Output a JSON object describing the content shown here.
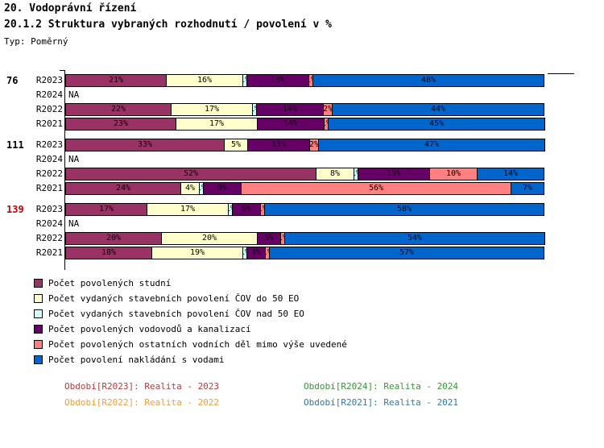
{
  "header": {
    "title": "20. Vodoprávní řízení",
    "subtitle": "20.1.2 Struktura vybraných rozhodnutí / povolení v %",
    "type_label": "Typ: Poměrný"
  },
  "chart_data": {
    "type": "bar",
    "orientation": "horizontal",
    "stacked": true,
    "unit": "%",
    "xlim": [
      0,
      100
    ],
    "na_label": "NA",
    "series_keys": [
      "studny",
      "cov-do-50-eo",
      "cov-nad-50-eo",
      "vodovody-kanalizace",
      "ostatni-vodni-dila",
      "nakladani-s-vodami"
    ],
    "series_names": [
      "Počet povolených studní",
      "Počet vydaných stavebních povolení ČOV do 50 EO",
      "Počet vydaných stavebních povolení ČOV nad 50 EO",
      "Počet povolených vodovodů a kanalizací",
      "Počet povolených ostatních vodních děl mimo výše uvedené",
      "Počet povolení nakládání s vodami"
    ],
    "series_colors": [
      "#993366",
      "#FFFFCC",
      "#CCFFFF",
      "#660066",
      "#FF8080",
      "#0066CC"
    ],
    "groups": [
      {
        "label": "76",
        "label_color": "#000000",
        "rows": [
          {
            "period": "R2023",
            "values": [
              21,
              16,
              1,
              13,
              1,
              48
            ]
          },
          {
            "period": "R2024",
            "na": true
          },
          {
            "period": "R2022",
            "values": [
              22,
              17,
              1,
              14,
              2,
              44
            ]
          },
          {
            "period": "R2021",
            "values": [
              23,
              17,
              0,
              14,
              1,
              45
            ]
          }
        ]
      },
      {
        "label": "111",
        "label_color": "#000000",
        "rows": [
          {
            "period": "R2023",
            "values": [
              33,
              5,
              0,
              13,
              2,
              47
            ]
          },
          {
            "period": "R2024",
            "na": true
          },
          {
            "period": "R2022",
            "values": [
              52,
              8,
              1,
              15,
              10,
              14
            ]
          },
          {
            "period": "R2021",
            "values": [
              24,
              4,
              1,
              8,
              56,
              7
            ]
          }
        ]
      },
      {
        "label": "139",
        "label_color": "#CC0000",
        "rows": [
          {
            "period": "R2023",
            "values": [
              17,
              17,
              1,
              6,
              1,
              58
            ]
          },
          {
            "period": "R2024",
            "na": true
          },
          {
            "period": "R2022",
            "values": [
              20,
              20,
              0,
              5,
              1,
              54
            ]
          },
          {
            "period": "R2021",
            "values": [
              18,
              19,
              1,
              4,
              1,
              57
            ]
          }
        ]
      }
    ]
  },
  "legend": {
    "items": [
      {
        "label": "Počet povolených studní",
        "color": "#993366",
        "key": "studny"
      },
      {
        "label": "Počet vydaných stavebních povolení ČOV do 50 EO",
        "color": "#FFFFCC",
        "key": "cov-do-50-eo"
      },
      {
        "label": "Počet vydaných stavebních povolení ČOV nad 50 EO",
        "color": "#CCFFFF",
        "key": "cov-nad-50-eo"
      },
      {
        "label": "Počet povolených vodovodů a kanalizací",
        "color": "#660066",
        "key": "vodovody-kanalizace"
      },
      {
        "label": "Počet povolených ostatních vodních děl mimo výše uvedené",
        "color": "#FF8080",
        "key": "ostatni-vodni-dila"
      },
      {
        "label": "Počet povolení nakládání s vodami",
        "color": "#0066CC",
        "key": "nakladani-s-vodami"
      }
    ]
  },
  "footer": {
    "items": [
      {
        "key": "r2023",
        "text": "Období[R2023]: Realita - 2023",
        "color": "#CC3333"
      },
      {
        "key": "r2024",
        "text": "Období[R2024]: Realita - 2024",
        "color": "#339933"
      },
      {
        "key": "r2022",
        "text": "Období[R2022]: Realita - 2022",
        "color": "#FF9933"
      },
      {
        "key": "r2021",
        "text": "Období[R2021]: Realita - 2021",
        "color": "#3377AA"
      }
    ]
  }
}
